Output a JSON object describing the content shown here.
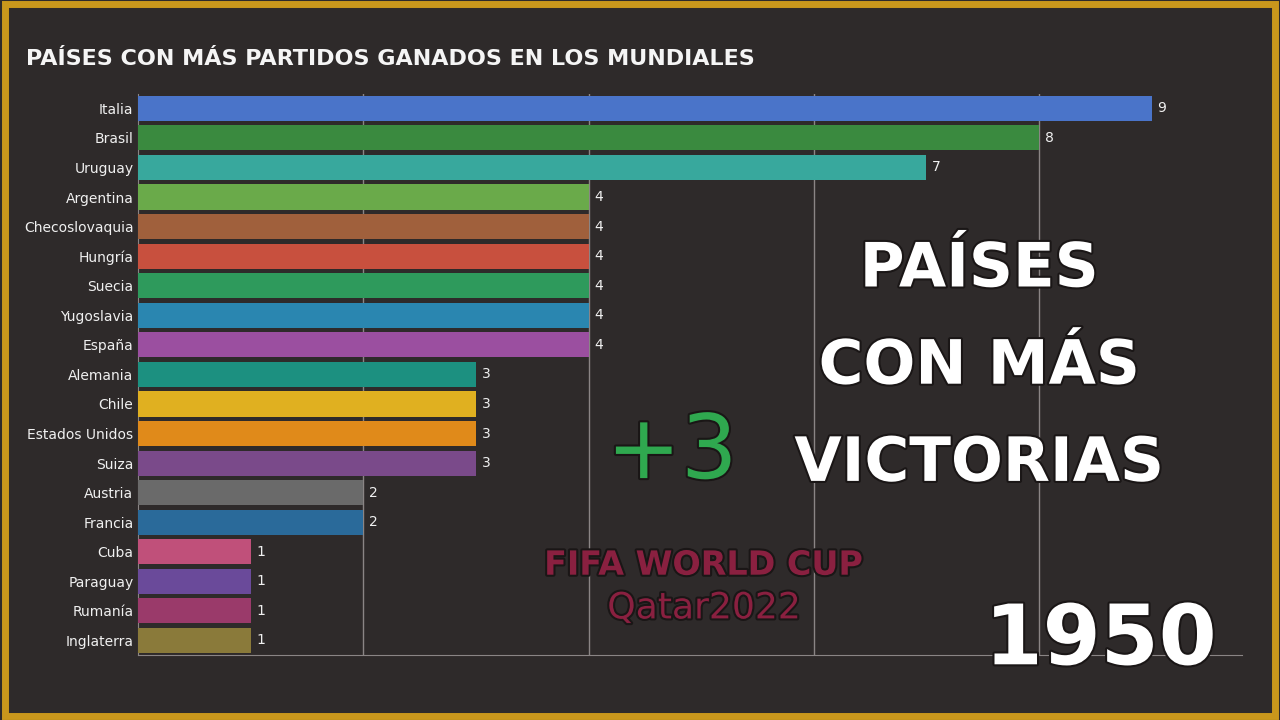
{
  "chart_data": {
    "type": "bar",
    "orientation": "horizontal",
    "title": "PAÍSES CON MÁS PARTIDOS GANADOS EN LOS MUNDIALES",
    "categories": [
      "Italia",
      "Brasil",
      "Uruguay",
      "Argentina",
      "Checoslovaquia",
      "Hungría",
      "Suecia",
      "Yugoslavia",
      "España",
      "Alemania",
      "Chile",
      "Estados Unidos",
      "Suiza",
      "Austria",
      "Francia",
      "Cuba",
      "Paraguay",
      "Rumanía",
      "Inglaterra"
    ],
    "values": [
      9,
      8,
      7,
      4,
      4,
      4,
      4,
      4,
      4,
      3,
      3,
      3,
      3,
      2,
      2,
      1,
      1,
      1,
      1
    ],
    "colors": [
      "#4a74c9",
      "#3a8a3f",
      "#38a89d",
      "#6aaa4a",
      "#a0603c",
      "#c8503e",
      "#2e9a5c",
      "#2a86b0",
      "#9b4fa0",
      "#1c9080",
      "#e0b020",
      "#e08a1a",
      "#7a4a8a",
      "#6a6a6a",
      "#2a6a9a",
      "#c0507a",
      "#6a4a9a",
      "#9a3a6a",
      "#8a7a3a"
    ],
    "xlim": [
      0,
      9.8
    ],
    "xticks": [
      2,
      4,
      6,
      8
    ],
    "grid": true,
    "data_labels": true,
    "tick_labels": "y",
    "annotations": [
      "PAÍSES",
      "CON MÁS",
      "VICTORIAS",
      "+3",
      "FIFA WORLD CUP",
      "Qatar2022",
      "1950"
    ]
  }
}
